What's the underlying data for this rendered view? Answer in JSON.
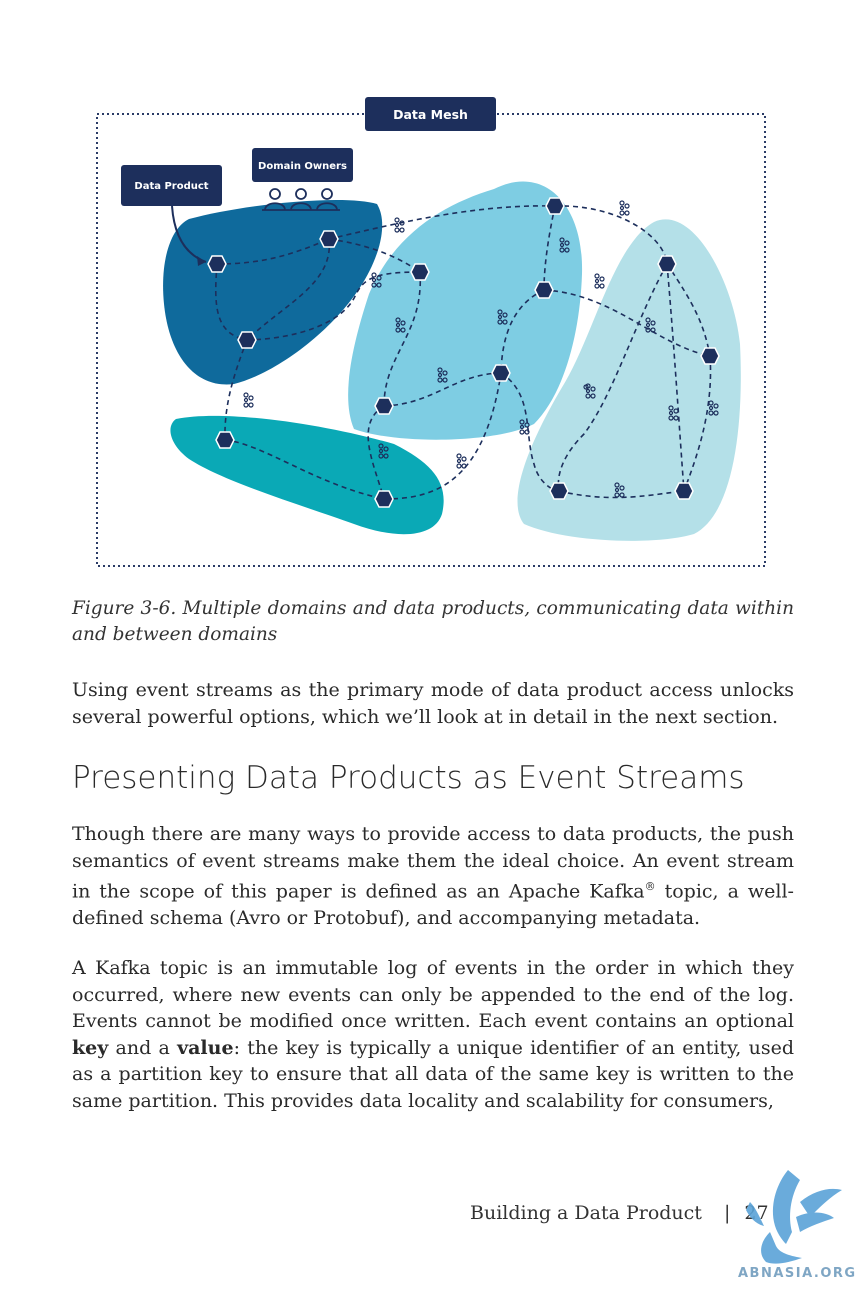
{
  "figure": {
    "mesh_label": "Data Mesh",
    "data_product_label": "Data Product",
    "domain_owners_label": "Domain Owners"
  },
  "caption": "Figure 3-6. Multiple domains and data products, communicating data within and between domains",
  "para1": "Using event streams as the primary mode of data product access unlocks several powerful options, which we’ll look at in detail in the next section.",
  "heading": "Presenting Data Products as Event Streams",
  "para2": {
    "part1": "Though there are many ways to provide access to data products, the push semantics of event streams make them the ideal choice. An event stream in the scope of this paper is defined as an Apache Kafka",
    "registered": "®",
    "part2": " topic, a well-defined schema (Avro or Protobuf), and accompanying metadata."
  },
  "para3": {
    "part1": "A Kafka topic is an immutable log of events in the order in which they occurred, where new events can only be appended to the end of the log. Events cannot be modified once written. Each event contains an optional ",
    "key": "key",
    "part2": " and a ",
    "value": "value",
    "part3": ": the key is typically a unique identifier of an entity, used as a partition key to ensure that all data of the same key is written to the same partition. This provides data locality and scalability for consumers,"
  },
  "footer": {
    "section": "Building a Data Product",
    "separator": "|",
    "page": "27"
  },
  "watermark": "ABNASIA.ORG",
  "colors": {
    "navy": "#1d2f5c",
    "domain_dark": "#0f6a9c",
    "domain_mid": "#7ecde3",
    "domain_light": "#b4e0e8",
    "domain_teal": "#0aa9b6"
  }
}
